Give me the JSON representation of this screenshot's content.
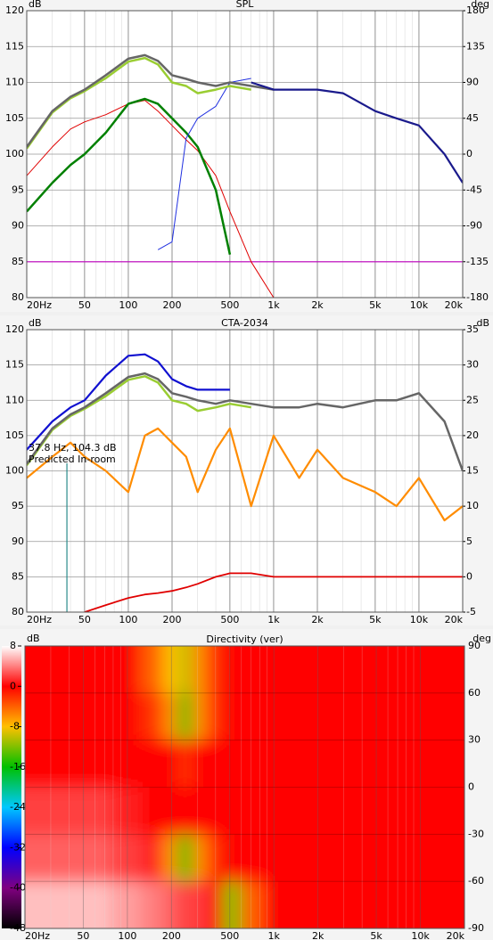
{
  "chart_data": [
    {
      "type": "line",
      "title": "SPL",
      "y_label": "dB",
      "y2_label": "deg",
      "xscale": "log",
      "grid": true,
      "xlim": [
        20,
        20000
      ],
      "xticks": [
        {
          "value": 20,
          "label": "20Hz"
        },
        50,
        100,
        200,
        500,
        {
          "value": 1000,
          "label": "1k"
        },
        {
          "value": 2000,
          "label": "2k"
        },
        {
          "value": 5000,
          "label": "5k"
        },
        {
          "value": 10000,
          "label": "10k"
        },
        {
          "value": 20000,
          "label": "20k"
        }
      ],
      "ylim": [
        80,
        120
      ],
      "yticks": [
        80,
        85,
        90,
        95,
        100,
        105,
        110,
        115,
        120
      ],
      "y2lim": [
        -180,
        180
      ],
      "y2ticks": [
        -180,
        -135,
        -90,
        -45,
        0,
        45,
        90,
        135,
        180
      ],
      "x": [
        20,
        30,
        40,
        50,
        70,
        100,
        130,
        160,
        200,
        250,
        300,
        400,
        500,
        700,
        1000,
        1500,
        2000,
        3000,
        5000,
        7000,
        10000,
        15000,
        20000
      ],
      "series": [
        {
          "name": "magenta",
          "color": "#c000c0",
          "width": 1.2,
          "values": [
            85,
            85,
            85,
            85,
            85,
            85,
            85,
            85,
            85,
            85,
            85,
            85,
            85,
            85,
            85,
            85,
            85,
            85,
            85,
            85,
            85,
            85,
            85
          ]
        },
        {
          "name": "red",
          "color": "#e00000",
          "width": 1,
          "values": [
            97,
            101,
            103.5,
            104.5,
            105.5,
            107,
            107.5,
            106,
            104,
            102,
            100.5,
            97,
            92,
            85,
            80,
            null,
            null,
            null,
            null,
            null,
            null,
            null,
            null
          ]
        },
        {
          "name": "green",
          "color": "#008000",
          "width": 2.5,
          "values": [
            92,
            96,
            98.5,
            100,
            103,
            107,
            107.7,
            107,
            105,
            103,
            101,
            95,
            86,
            null,
            null,
            null,
            null,
            null,
            null,
            null,
            null,
            null,
            null
          ]
        },
        {
          "name": "phase",
          "color": "#2030e0",
          "width": 1,
          "axis": "y2",
          "values": [
            null,
            null,
            null,
            null,
            null,
            null,
            null,
            -120,
            -110,
            20,
            45,
            60,
            90,
            95,
            null,
            null,
            null,
            null,
            null,
            null,
            null,
            null,
            null
          ]
        },
        {
          "name": "light-green",
          "color": "#9acd32",
          "width": 2.5,
          "values": [
            100.8,
            105.8,
            107.8,
            108.8,
            110.6,
            112.9,
            113.4,
            112.5,
            110,
            109.5,
            108.5,
            109,
            109.5,
            109,
            null,
            null,
            null,
            null,
            null,
            null,
            null,
            null,
            null
          ]
        },
        {
          "name": "total",
          "color": "#666666",
          "width": 2.5,
          "values": [
            101,
            106,
            108,
            109,
            111,
            113.3,
            113.8,
            113,
            111,
            110.5,
            110,
            109.5,
            110,
            109.5,
            109,
            null,
            null,
            null,
            null,
            null,
            null,
            null,
            null
          ]
        },
        {
          "name": "navy",
          "color": "#1a1a8c",
          "width": 2.2,
          "values": [
            null,
            null,
            null,
            null,
            null,
            null,
            null,
            null,
            null,
            null,
            null,
            null,
            null,
            110,
            109,
            109,
            109,
            108.5,
            106,
            105,
            104,
            100,
            96
          ]
        }
      ]
    },
    {
      "type": "line",
      "title": "CTA-2034",
      "y_label": "dB",
      "y2_label": "dB",
      "xscale": "log",
      "grid": true,
      "xlim": [
        20,
        20000
      ],
      "xticks": [
        {
          "value": 20,
          "label": "20Hz"
        },
        50,
        100,
        200,
        500,
        {
          "value": 1000,
          "label": "1k"
        },
        {
          "value": 2000,
          "label": "2k"
        },
        {
          "value": 5000,
          "label": "5k"
        },
        {
          "value": 10000,
          "label": "10k"
        },
        {
          "value": 20000,
          "label": "20k"
        }
      ],
      "ylim": [
        80,
        120
      ],
      "yticks": [
        80,
        85,
        90,
        95,
        100,
        105,
        110,
        115,
        120
      ],
      "y2lim": [
        -5,
        35
      ],
      "y2ticks": [
        -5,
        0,
        5,
        10,
        15,
        20,
        25,
        30,
        35
      ],
      "cursor": {
        "x": 37.8,
        "label": "37.8 Hz, 104.3 dB",
        "note": "Predicted In-room",
        "color": "#2a8a8a"
      },
      "x": [
        20,
        30,
        40,
        50,
        70,
        100,
        130,
        160,
        200,
        250,
        300,
        400,
        500,
        700,
        1000,
        1500,
        2000,
        3000,
        5000,
        7000,
        10000,
        15000,
        20000
      ],
      "series": [
        {
          "name": "red",
          "color": "#e00000",
          "width": 1.8,
          "axis": "y2",
          "values": [
            null,
            null,
            null,
            -5,
            -4,
            -3,
            -2.5,
            -2.3,
            -2,
            -1.5,
            -1,
            0,
            0.5,
            0.5,
            0,
            0,
            0,
            0,
            0,
            0,
            0,
            0,
            0
          ]
        },
        {
          "name": "orange",
          "color": "#ff8c00",
          "width": 2.2,
          "axis": "y2",
          "values": [
            14,
            17,
            19,
            17,
            15,
            12,
            20,
            21,
            19,
            17,
            12,
            18,
            21,
            10,
            20,
            14,
            18,
            14,
            12,
            10,
            14,
            8,
            10
          ]
        },
        {
          "name": "light-green",
          "color": "#9acd32",
          "width": 2.5,
          "values": [
            100.8,
            105.8,
            107.8,
            108.8,
            110.6,
            112.9,
            113.4,
            112.5,
            110,
            109.5,
            108.5,
            109,
            109.5,
            109,
            null,
            null,
            null,
            null,
            null,
            null,
            null,
            null,
            null
          ]
        },
        {
          "name": "total",
          "color": "#666666",
          "width": 2.5,
          "values": [
            101,
            106,
            108,
            109,
            111,
            113.3,
            113.8,
            113,
            111,
            110.5,
            110,
            109.5,
            110,
            109.5,
            109,
            109,
            109.5,
            109,
            110,
            110,
            111,
            107,
            100
          ]
        },
        {
          "name": "blue",
          "color": "#1010d0",
          "width": 2.2,
          "values": [
            103,
            107,
            109,
            110,
            113.5,
            116.3,
            116.5,
            115.5,
            113,
            112,
            111.5,
            111.5,
            111.5,
            null,
            null,
            null,
            null,
            null,
            null,
            null,
            null,
            null,
            null
          ]
        }
      ]
    },
    {
      "type": "heatmap",
      "title": "Directivity (ver)",
      "y_label": "deg",
      "z_label": "dB",
      "y_axis_side": "right",
      "xscale": "log",
      "xlim": [
        20,
        20000
      ],
      "xticks": [
        {
          "value": 20,
          "label": "20Hz"
        },
        50,
        100,
        200,
        500,
        {
          "value": 1000,
          "label": "1k"
        },
        {
          "value": 2000,
          "label": "2k"
        },
        {
          "value": 5000,
          "label": "5k"
        },
        {
          "value": 10000,
          "label": "10k"
        },
        {
          "value": 20000,
          "label": "20k"
        }
      ],
      "ylim": [
        -90,
        90
      ],
      "yticks": [
        -90,
        -60,
        -30,
        0,
        30,
        60,
        90
      ],
      "zticks": [
        8,
        0,
        -8,
        -16,
        -24,
        -32,
        -40,
        -48
      ],
      "colorscale": [
        "#ffffff",
        "#ff0000",
        "#ffc000",
        "#00c000",
        "#00c8ff",
        "#0000ff",
        "#800080",
        "#000000"
      ],
      "x": [
        30,
        60,
        100,
        150,
        200,
        250,
        300,
        400,
        500,
        700,
        1000,
        2000,
        5000,
        10000,
        20000
      ],
      "y": [
        75,
        45,
        15,
        -15,
        -45,
        -75
      ],
      "z": [
        [
          0,
          0,
          0,
          -4,
          -8,
          -10,
          -6,
          -2,
          0,
          0,
          0,
          0,
          0,
          0,
          0
        ],
        [
          0,
          0,
          0,
          -2,
          -6,
          -14,
          -6,
          -2,
          0,
          0,
          0,
          0,
          0,
          0,
          0
        ],
        [
          0,
          0,
          0,
          0,
          0,
          -2,
          0,
          0,
          0,
          0,
          0,
          0,
          0,
          0,
          0
        ],
        [
          2,
          2,
          1,
          0,
          0,
          0,
          0,
          0,
          0,
          0,
          0,
          0,
          0,
          0,
          0
        ],
        [
          3,
          3,
          2,
          1,
          -6,
          -16,
          -6,
          -2,
          0,
          0,
          0,
          0,
          0,
          0,
          0
        ],
        [
          6,
          6,
          5,
          4,
          3,
          2,
          2,
          0,
          -12,
          -4,
          0,
          0,
          0,
          0,
          0
        ]
      ]
    }
  ]
}
